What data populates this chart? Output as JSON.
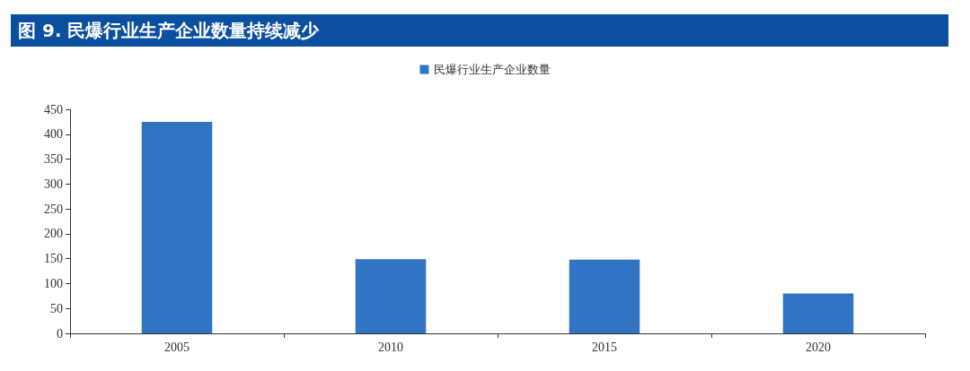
{
  "chart_data": {
    "type": "bar",
    "title": "图 9. 民爆行业生产企业数量持续减少",
    "categories": [
      "2005",
      "2010",
      "2015",
      "2020"
    ],
    "series": [
      {
        "name": "民爆行业生产企业数量",
        "color": "#3174c4",
        "values": [
          425,
          149,
          148,
          80
        ]
      }
    ],
    "ylim": [
      0,
      450
    ],
    "yticks": [
      0,
      50,
      100,
      150,
      200,
      250,
      300,
      350,
      400,
      450
    ],
    "grid": false,
    "legend": "top"
  }
}
